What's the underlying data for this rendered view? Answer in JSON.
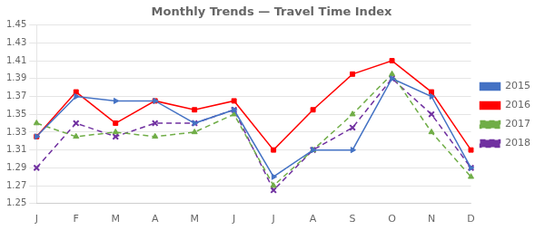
{
  "chart_data": {
    "type": "line",
    "title": "Monthly Trends — Travel Time Index",
    "categories": [
      "J",
      "F",
      "M",
      "A",
      "M",
      "J",
      "J",
      "A",
      "S",
      "O",
      "N",
      "D"
    ],
    "series": [
      {
        "name": "2015",
        "color": "#4472C4",
        "marker": "triangle_right",
        "line_style": "solid",
        "values": [
          1.325,
          1.37,
          1.365,
          1.365,
          1.34,
          1.355,
          1.28,
          1.31,
          1.31,
          1.39,
          1.37,
          1.29
        ]
      },
      {
        "name": "2016",
        "color": "#FF0000",
        "marker": "square",
        "line_style": "solid",
        "values": [
          1.325,
          1.375,
          1.34,
          1.365,
          1.355,
          1.365,
          1.31,
          1.355,
          1.395,
          1.41,
          1.375,
          1.31
        ]
      },
      {
        "name": "2017",
        "color": "#70AD47",
        "marker": "triangle_up",
        "line_style": "dashed",
        "values": [
          1.34,
          1.325,
          1.33,
          1.325,
          1.33,
          1.35,
          1.27,
          1.31,
          1.35,
          1.395,
          1.33,
          1.28
        ]
      },
      {
        "name": "2018",
        "color": "#7030A0",
        "marker": "x",
        "line_style": "dashed",
        "values": [
          1.29,
          1.34,
          1.325,
          1.34,
          1.34,
          1.355,
          1.265,
          1.31,
          1.335,
          1.39,
          1.35,
          1.29
        ]
      }
    ],
    "ylim": [
      1.25,
      1.45
    ],
    "yticks": [
      1.25,
      1.27,
      1.29,
      1.31,
      1.33,
      1.35,
      1.37,
      1.39,
      1.41,
      1.43,
      1.45
    ],
    "grid": true,
    "legend": "right"
  }
}
